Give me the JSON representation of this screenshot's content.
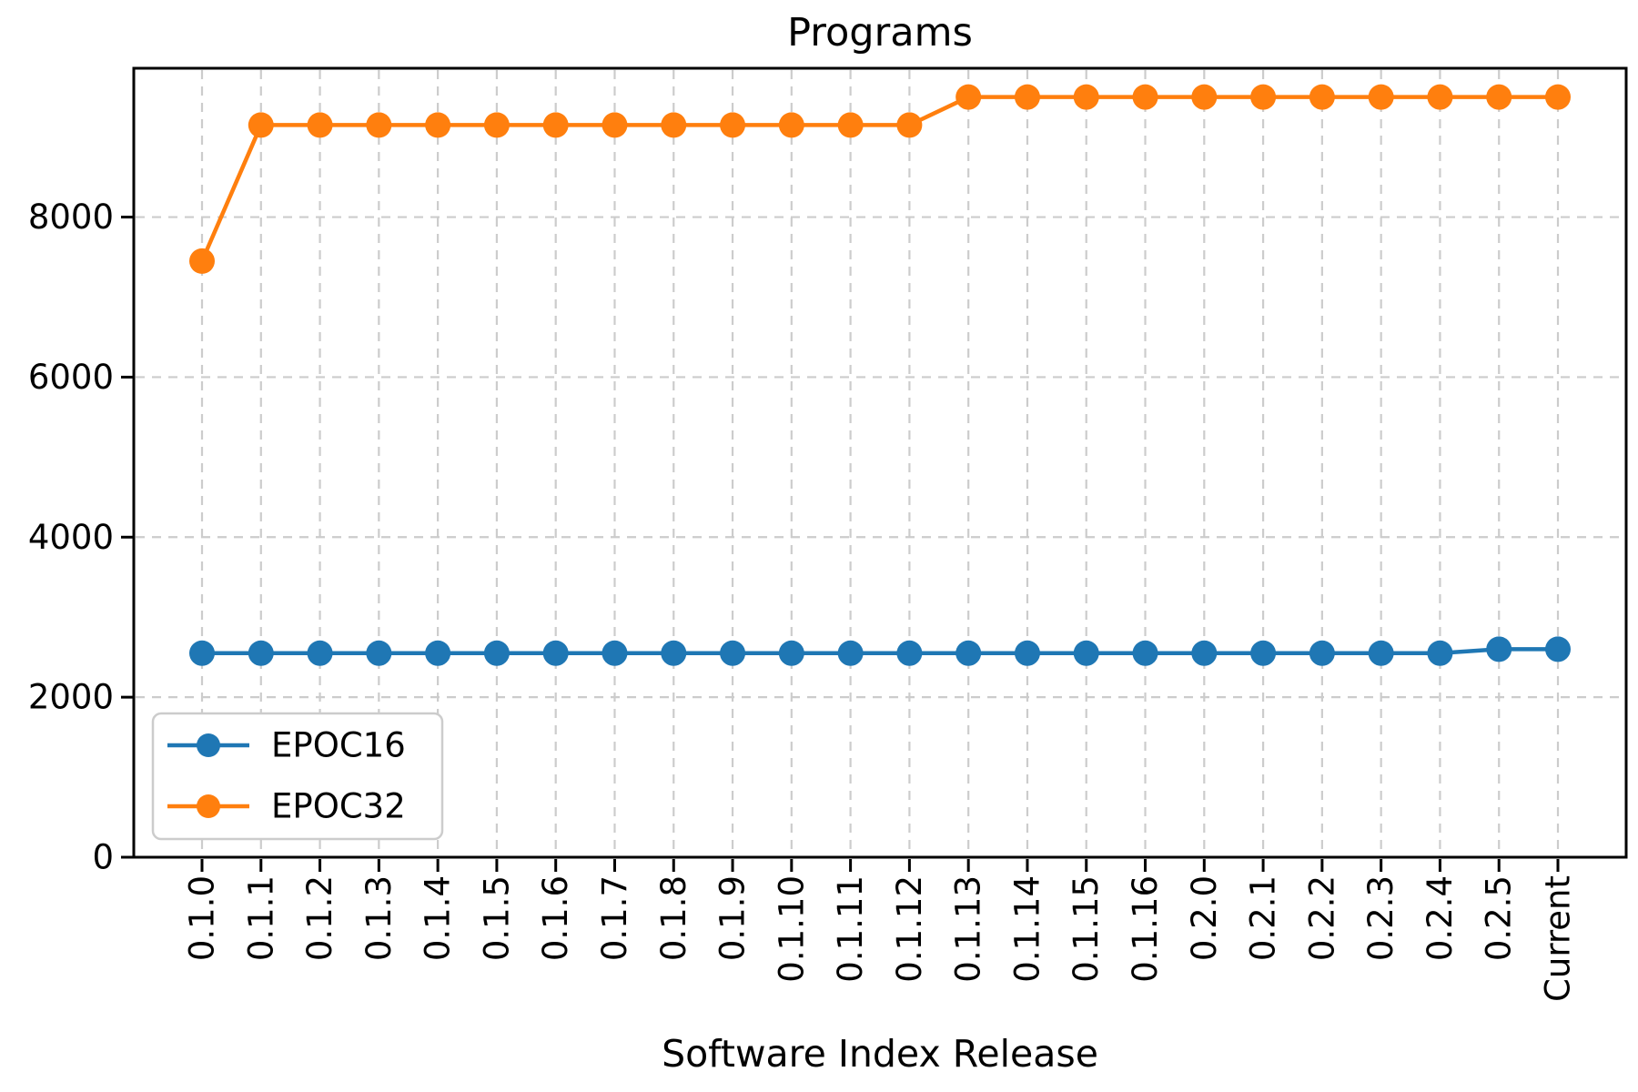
{
  "chart_data": {
    "type": "line",
    "title": "Programs",
    "xlabel": "Software Index Release",
    "ylabel": "",
    "categories": [
      "0.1.0",
      "0.1.1",
      "0.1.2",
      "0.1.3",
      "0.1.4",
      "0.1.5",
      "0.1.6",
      "0.1.7",
      "0.1.8",
      "0.1.9",
      "0.1.10",
      "0.1.11",
      "0.1.12",
      "0.1.13",
      "0.1.14",
      "0.1.15",
      "0.1.16",
      "0.2.0",
      "0.2.1",
      "0.2.2",
      "0.2.3",
      "0.2.4",
      "0.2.5",
      "Current"
    ],
    "series": [
      {
        "name": "EPOC16",
        "color": "#1f77b4",
        "values": [
          2550,
          2550,
          2550,
          2550,
          2550,
          2550,
          2550,
          2550,
          2550,
          2550,
          2550,
          2550,
          2550,
          2550,
          2550,
          2550,
          2550,
          2550,
          2550,
          2550,
          2550,
          2550,
          2600,
          2600
        ]
      },
      {
        "name": "EPOC32",
        "color": "#ff7f0e",
        "values": [
          7450,
          9150,
          9150,
          9150,
          9150,
          9150,
          9150,
          9150,
          9150,
          9150,
          9150,
          9150,
          9150,
          9500,
          9500,
          9500,
          9500,
          9500,
          9500,
          9500,
          9500,
          9500,
          9500,
          9500
        ]
      }
    ],
    "ylim": [
      0,
      9860
    ],
    "yticks": [
      0,
      2000,
      4000,
      6000,
      8000
    ],
    "grid": "dashed both axes",
    "legend_position": "lower left",
    "marker": "circle",
    "colors": {
      "grid": "#cccccc",
      "axis": "#000000",
      "text": "#000000",
      "background": "#ffffff",
      "legend_border": "#cccccc"
    }
  }
}
